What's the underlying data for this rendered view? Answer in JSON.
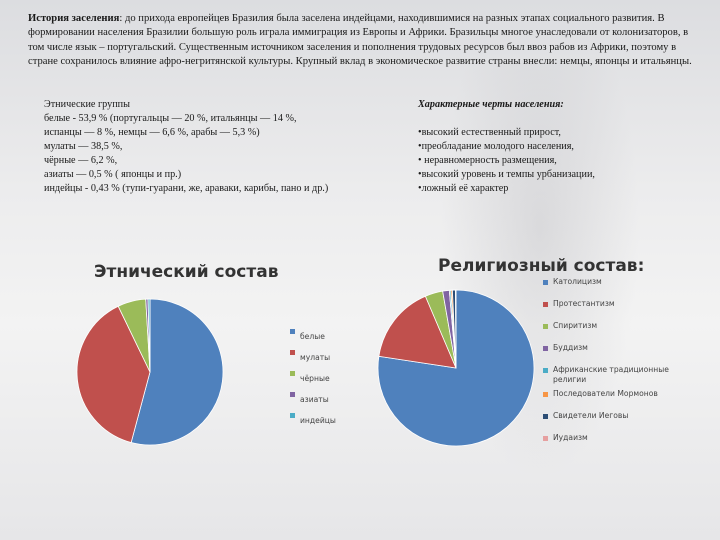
{
  "intro": {
    "label": "История заселения",
    "text": ": до прихода европейцев Бразилия была заселена индейцами, находившимися на разных этапах социального развития. В формировании населения Бразилии большую роль играла иммиграция из Европы и Африки. Бразильцы многое унаследовали от колонизаторов, в том числе язык – португальский. Существенным источником заселения и пополнения трудовых ресурсов был ввоз рабов из Африки, поэтому в стране сохранилось влияние афро-негритянской культуры. Крупный вклад в экономическое развитие страны внесли: немцы, японцы и итальянцы."
  },
  "ethnic_text": {
    "heading": "Этнические группы",
    "lines": [
      "белые - 53,9 % (португальцы — 20 %, итальянцы — 14 %,",
      "испанцы — 8 %, немцы — 6,6 %, арабы — 5,3 %)",
      "мулаты — 38,5 %,",
      "чёрные — 6,2 %,",
      "азиаты — 0,5 % ( японцы и пр.)",
      "индейцы - 0,43 % (тупи-гуарани, же, араваки, карибы, пано и др.)"
    ]
  },
  "traits": {
    "heading": "Характерные черты населения:",
    "lines": [
      "•высокий естественный прирост,",
      "•преобладание молодого населения,",
      "• неравномерность размещения,",
      "•высокий уровень и темпы урбанизации,",
      "•ложный её характер"
    ]
  },
  "chart_data": [
    {
      "type": "pie",
      "title": "Этнический состав",
      "categories": [
        "белые",
        "мулаты",
        "чёрные",
        "азиаты",
        "индейцы"
      ],
      "values": [
        53.9,
        38.5,
        6.2,
        0.5,
        0.43
      ],
      "colors": [
        "#4f81bd",
        "#c0504d",
        "#9bbb59",
        "#8064a2",
        "#4bacc6"
      ],
      "legend": "right"
    },
    {
      "type": "pie",
      "title": "Религиозный состав:",
      "categories": [
        "Католицизм",
        "Протестантизм",
        "Спиритизм",
        "Буддизм",
        "Африканские традиционные религии",
        "Последователи Мормонов",
        "Свидетели Иеговы",
        "Иудаизм"
      ],
      "values": [
        73.6,
        15.4,
        3.5,
        1.3,
        0.3,
        0.3,
        0.6,
        0.1
      ],
      "colors": [
        "#4f81bd",
        "#c0504d",
        "#9bbb59",
        "#8064a2",
        "#4bacc6",
        "#f79646",
        "#2c4d75",
        "#e6a0a0"
      ],
      "legend": "right"
    }
  ]
}
